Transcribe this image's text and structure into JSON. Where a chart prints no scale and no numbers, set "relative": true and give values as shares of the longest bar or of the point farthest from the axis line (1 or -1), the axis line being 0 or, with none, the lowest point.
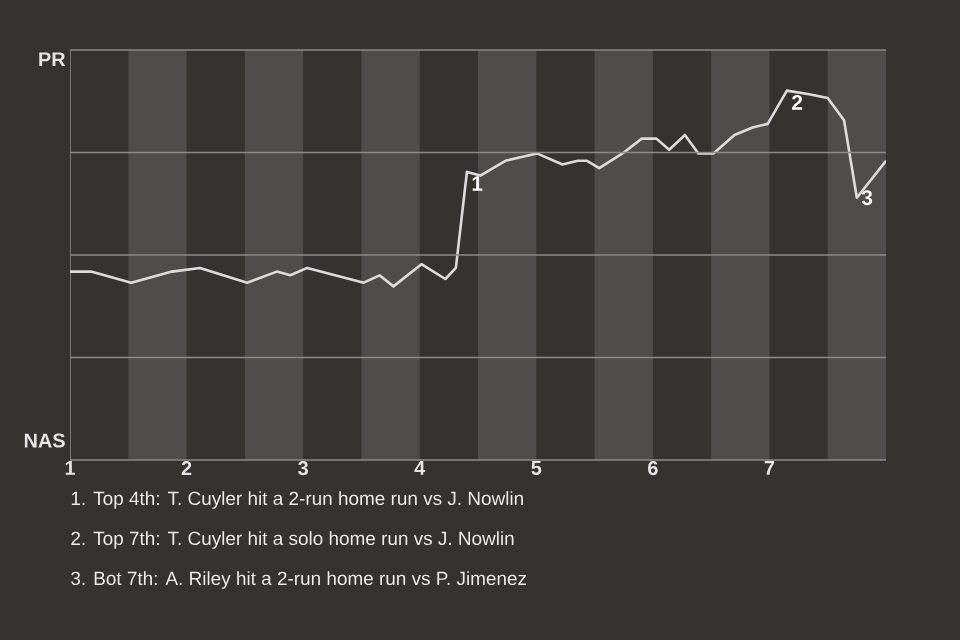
{
  "chart_data": {
    "type": "line",
    "x": [
      1,
      1.18,
      1.525,
      1.875,
      2.115,
      2.52,
      2.775,
      2.89,
      3.035,
      3.52,
      3.655,
      3.775,
      4.015,
      4.22,
      4.31,
      4.405,
      4.52,
      4.735,
      5.005,
      5.225,
      5.355,
      5.435,
      5.54,
      5.74,
      5.905,
      6.03,
      6.14,
      6.275,
      6.39,
      6.52,
      6.7,
      6.855,
      6.985,
      7.15,
      7.34,
      7.5,
      7.64,
      7.75,
      8.0
    ],
    "series": [
      {
        "color": "#dcdcdc",
        "values": [
          0.51,
          0.51,
          0.48,
          0.51,
          0.52,
          0.48,
          0.51,
          0.5,
          0.52,
          0.48,
          0.5,
          0.47,
          0.53,
          0.49,
          0.52,
          0.78,
          0.77,
          0.81,
          0.83,
          0.8,
          0.81,
          0.81,
          0.79,
          0.83,
          0.87,
          0.87,
          0.84,
          0.88,
          0.83,
          0.83,
          0.88,
          0.9,
          0.91,
          1,
          0.99,
          0.98,
          0.92,
          0.71,
          0.81
        ]
      }
    ],
    "relative": true,
    "xlim": [
      1,
      8
    ],
    "xticks": [
      1,
      2,
      3,
      4,
      5,
      6,
      7
    ],
    "grid": "y",
    "bands": [
      {
        "axis": "x",
        "from": 1.5,
        "to": 2,
        "color": "#4e4d4b"
      },
      {
        "axis": "x",
        "from": 2.5,
        "to": 3,
        "color": "#4e4d4b"
      },
      {
        "axis": "x",
        "from": 3.5,
        "to": 4,
        "color": "#4e4d4b"
      },
      {
        "axis": "x",
        "from": 4.5,
        "to": 5,
        "color": "#4e4d4b"
      },
      {
        "axis": "x",
        "from": 5.5,
        "to": 6,
        "color": "#4e4d4b"
      },
      {
        "axis": "x",
        "from": 6.5,
        "to": 7,
        "color": "#4e4d4b"
      },
      {
        "axis": "x",
        "from": 7.5,
        "to": 8,
        "color": "#4e4d4b"
      }
    ],
    "annotations": [
      {
        "text": "1",
        "x": 4.405,
        "y": 0.78
      },
      {
        "text": "2",
        "x": 7.15,
        "y": 1
      },
      {
        "text": "3",
        "x": 7.75,
        "y": 0.71
      },
      "PR",
      "NAS",
      "1. Top 4th: T. Cuyler hit a 2-run home run vs J. Nowlin",
      "2. Top 7th: T. Cuyler hit a solo home run vs J. Nowlin",
      "3. Bot 7th: A. Riley hit a 2-run home run vs P. Jimenez"
    ]
  }
}
